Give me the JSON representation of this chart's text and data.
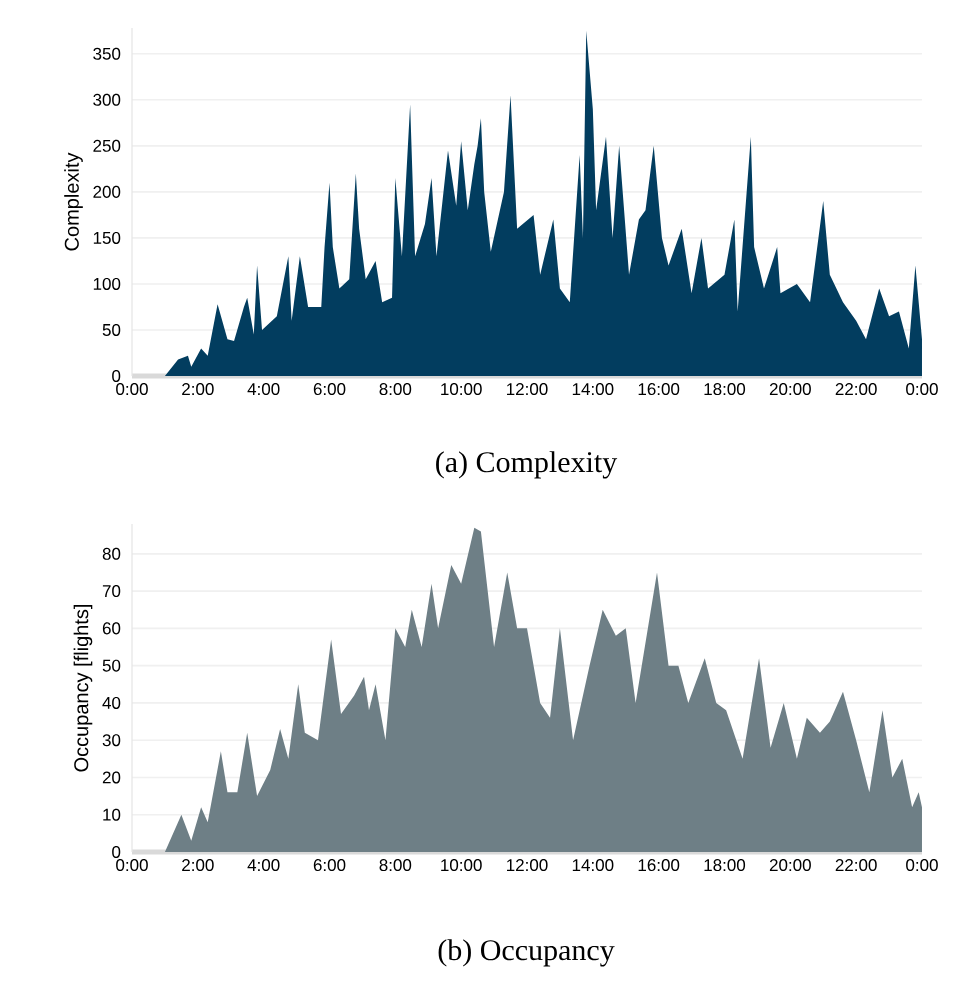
{
  "chart_data": [
    {
      "type": "area",
      "title": "(a)  Complexity",
      "ylabel": "Complexity",
      "color": "#023d5f",
      "grid": "y",
      "xlim": [
        0,
        24
      ],
      "xticks": [
        {
          "value": 0,
          "label": "0:00"
        },
        {
          "value": 2,
          "label": "2:00"
        },
        {
          "value": 4,
          "label": "4:00"
        },
        {
          "value": 6,
          "label": "6:00"
        },
        {
          "value": 8,
          "label": "8:00"
        },
        {
          "value": 10,
          "label": "10:00"
        },
        {
          "value": 12,
          "label": "12:00"
        },
        {
          "value": 14,
          "label": "14:00"
        },
        {
          "value": 16,
          "label": "16:00"
        },
        {
          "value": 18,
          "label": "18:00"
        },
        {
          "value": 20,
          "label": "20:00"
        },
        {
          "value": 22,
          "label": "22:00"
        },
        {
          "value": 24,
          "label": "0:00"
        }
      ],
      "ylim": [
        0,
        378
      ],
      "yticks": [
        0,
        50,
        100,
        150,
        200,
        250,
        300,
        350
      ],
      "x": [
        0,
        1.0,
        1.4,
        1.7,
        1.8,
        2.1,
        2.3,
        2.6,
        2.9,
        3.1,
        3.4,
        3.5,
        3.7,
        3.8,
        3.95,
        4.4,
        4.75,
        4.85,
        5.1,
        5.35,
        5.75,
        5.85,
        6.0,
        6.1,
        6.3,
        6.6,
        6.8,
        6.9,
        7.1,
        7.4,
        7.6,
        7.9,
        8.0,
        8.2,
        8.45,
        8.6,
        8.9,
        9.1,
        9.25,
        9.6,
        9.85,
        10.0,
        10.2,
        10.4,
        10.5,
        10.6,
        10.7,
        10.9,
        11.3,
        11.5,
        11.7,
        12.2,
        12.4,
        12.8,
        13.0,
        13.3,
        13.6,
        13.7,
        13.8,
        14.0,
        14.1,
        14.4,
        14.6,
        14.8,
        15.1,
        15.4,
        15.6,
        15.85,
        16.1,
        16.3,
        16.7,
        17.0,
        17.3,
        17.5,
        18.0,
        18.3,
        18.4,
        18.8,
        18.9,
        19.2,
        19.6,
        19.7,
        20.2,
        20.6,
        21.0,
        21.2,
        21.6,
        22.0,
        22.3,
        22.7,
        23.0,
        23.3,
        23.6,
        23.8,
        24.0
      ],
      "values": [
        0,
        0,
        18,
        22,
        10,
        30,
        22,
        78,
        40,
        38,
        75,
        85,
        45,
        120,
        50,
        65,
        130,
        60,
        130,
        75,
        75,
        140,
        210,
        140,
        95,
        105,
        220,
        160,
        105,
        125,
        80,
        85,
        215,
        130,
        295,
        130,
        165,
        215,
        130,
        245,
        185,
        255,
        180,
        230,
        250,
        280,
        200,
        135,
        200,
        305,
        160,
        175,
        110,
        170,
        95,
        80,
        240,
        150,
        375,
        290,
        180,
        260,
        150,
        250,
        110,
        170,
        180,
        250,
        150,
        120,
        160,
        90,
        150,
        95,
        110,
        170,
        70,
        260,
        140,
        95,
        140,
        90,
        100,
        80,
        190,
        110,
        80,
        60,
        40,
        95,
        65,
        70,
        30,
        120,
        40
      ]
    },
    {
      "type": "area",
      "title": "(b)  Occupancy",
      "ylabel": "Occupancy [flights]",
      "color": "#6e7f86",
      "grid": "y",
      "xlim": [
        0,
        24
      ],
      "xticks": [
        {
          "value": 0,
          "label": "0:00"
        },
        {
          "value": 2,
          "label": "2:00"
        },
        {
          "value": 4,
          "label": "4:00"
        },
        {
          "value": 6,
          "label": "6:00"
        },
        {
          "value": 8,
          "label": "8:00"
        },
        {
          "value": 10,
          "label": "10:00"
        },
        {
          "value": 12,
          "label": "12:00"
        },
        {
          "value": 14,
          "label": "14:00"
        },
        {
          "value": 16,
          "label": "16:00"
        },
        {
          "value": 18,
          "label": "18:00"
        },
        {
          "value": 20,
          "label": "20:00"
        },
        {
          "value": 22,
          "label": "22:00"
        },
        {
          "value": 24,
          "label": "0:00"
        }
      ],
      "ylim": [
        0,
        88
      ],
      "yticks": [
        0,
        10,
        20,
        30,
        40,
        50,
        60,
        70,
        80
      ],
      "x": [
        0,
        1.0,
        1.5,
        1.8,
        2.1,
        2.3,
        2.7,
        2.9,
        3.2,
        3.5,
        3.8,
        4.2,
        4.5,
        4.75,
        5.05,
        5.25,
        5.65,
        6.05,
        6.35,
        6.75,
        7.05,
        7.2,
        7.4,
        7.7,
        8.0,
        8.3,
        8.5,
        8.8,
        9.1,
        9.3,
        9.7,
        10.0,
        10.4,
        10.6,
        11.0,
        11.4,
        11.7,
        12.0,
        12.4,
        12.7,
        13.0,
        13.4,
        13.9,
        14.3,
        14.7,
        15.0,
        15.3,
        15.95,
        16.3,
        16.6,
        16.9,
        17.4,
        17.75,
        18.05,
        18.55,
        19.05,
        19.4,
        19.8,
        20.2,
        20.5,
        20.9,
        21.2,
        21.6,
        22.0,
        22.4,
        22.8,
        23.1,
        23.4,
        23.7,
        23.9,
        24.0
      ],
      "values": [
        0,
        0,
        10,
        3,
        12,
        8,
        27,
        16,
        16,
        32,
        15,
        22,
        33,
        25,
        45,
        32,
        30,
        57,
        37,
        42,
        47,
        38,
        45,
        30,
        60,
        55,
        65,
        55,
        72,
        60,
        77,
        72,
        87,
        86,
        55,
        75,
        60,
        60,
        40,
        36,
        60,
        30,
        50,
        65,
        58,
        60,
        40,
        75,
        50,
        50,
        40,
        52,
        40,
        38,
        25,
        52,
        28,
        40,
        25,
        36,
        32,
        35,
        43,
        30,
        16,
        38,
        20,
        25,
        12,
        16,
        12
      ]
    }
  ]
}
